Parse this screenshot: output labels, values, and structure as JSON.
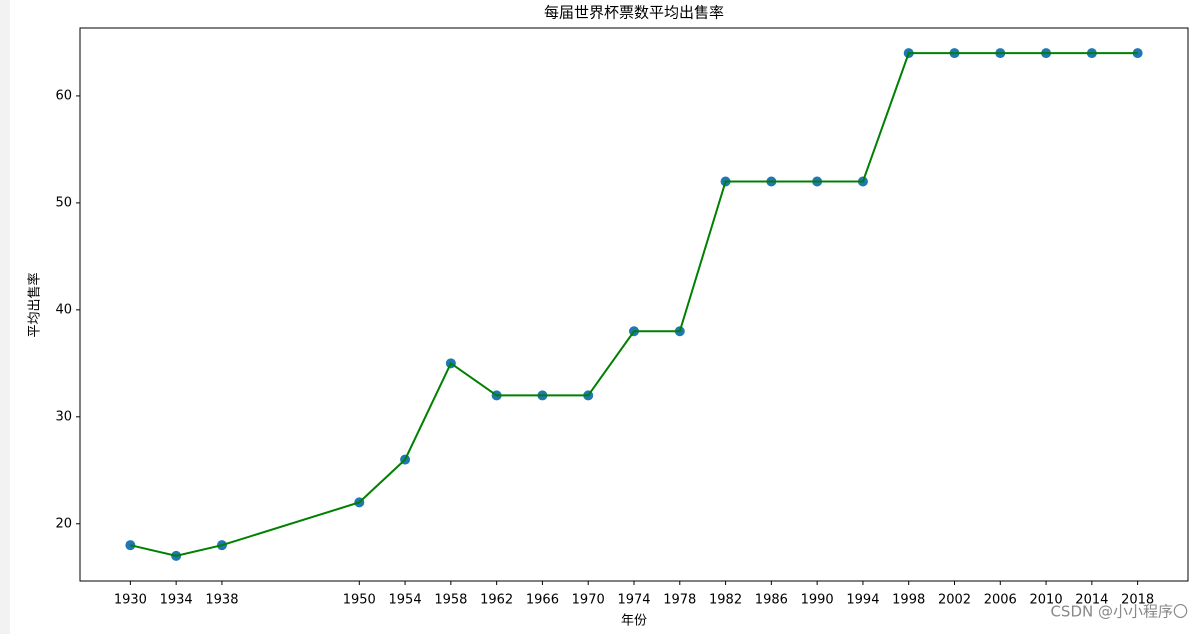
{
  "chart_data": {
    "type": "line",
    "title": "每届世界杯票数平均出售率",
    "x_label": "年份",
    "y_label": "平均出售率",
    "x": [
      1930,
      1934,
      1938,
      1950,
      1954,
      1958,
      1962,
      1966,
      1970,
      1974,
      1978,
      1982,
      1986,
      1990,
      1994,
      1998,
      2002,
      2006,
      2010,
      2014,
      2018
    ],
    "values": [
      18,
      17,
      18,
      22,
      26,
      35,
      32,
      32,
      32,
      38,
      38,
      52,
      52,
      52,
      52,
      64,
      64,
      64,
      64,
      64,
      64
    ],
    "color": "green",
    "marker_color": "#1f77b4",
    "xlim": [
      1925.6,
      2022.4
    ],
    "ylim": [
      14.65,
      66.35
    ],
    "xticks": [
      1930,
      1934,
      1938,
      1950,
      1954,
      1958,
      1962,
      1966,
      1970,
      1974,
      1978,
      1982,
      1986,
      1990,
      1994,
      1998,
      2002,
      2006,
      2010,
      2014,
      2018
    ],
    "yticks": [
      20,
      30,
      40,
      50,
      60
    ],
    "annotation": "CSDN @小小程序〇"
  }
}
